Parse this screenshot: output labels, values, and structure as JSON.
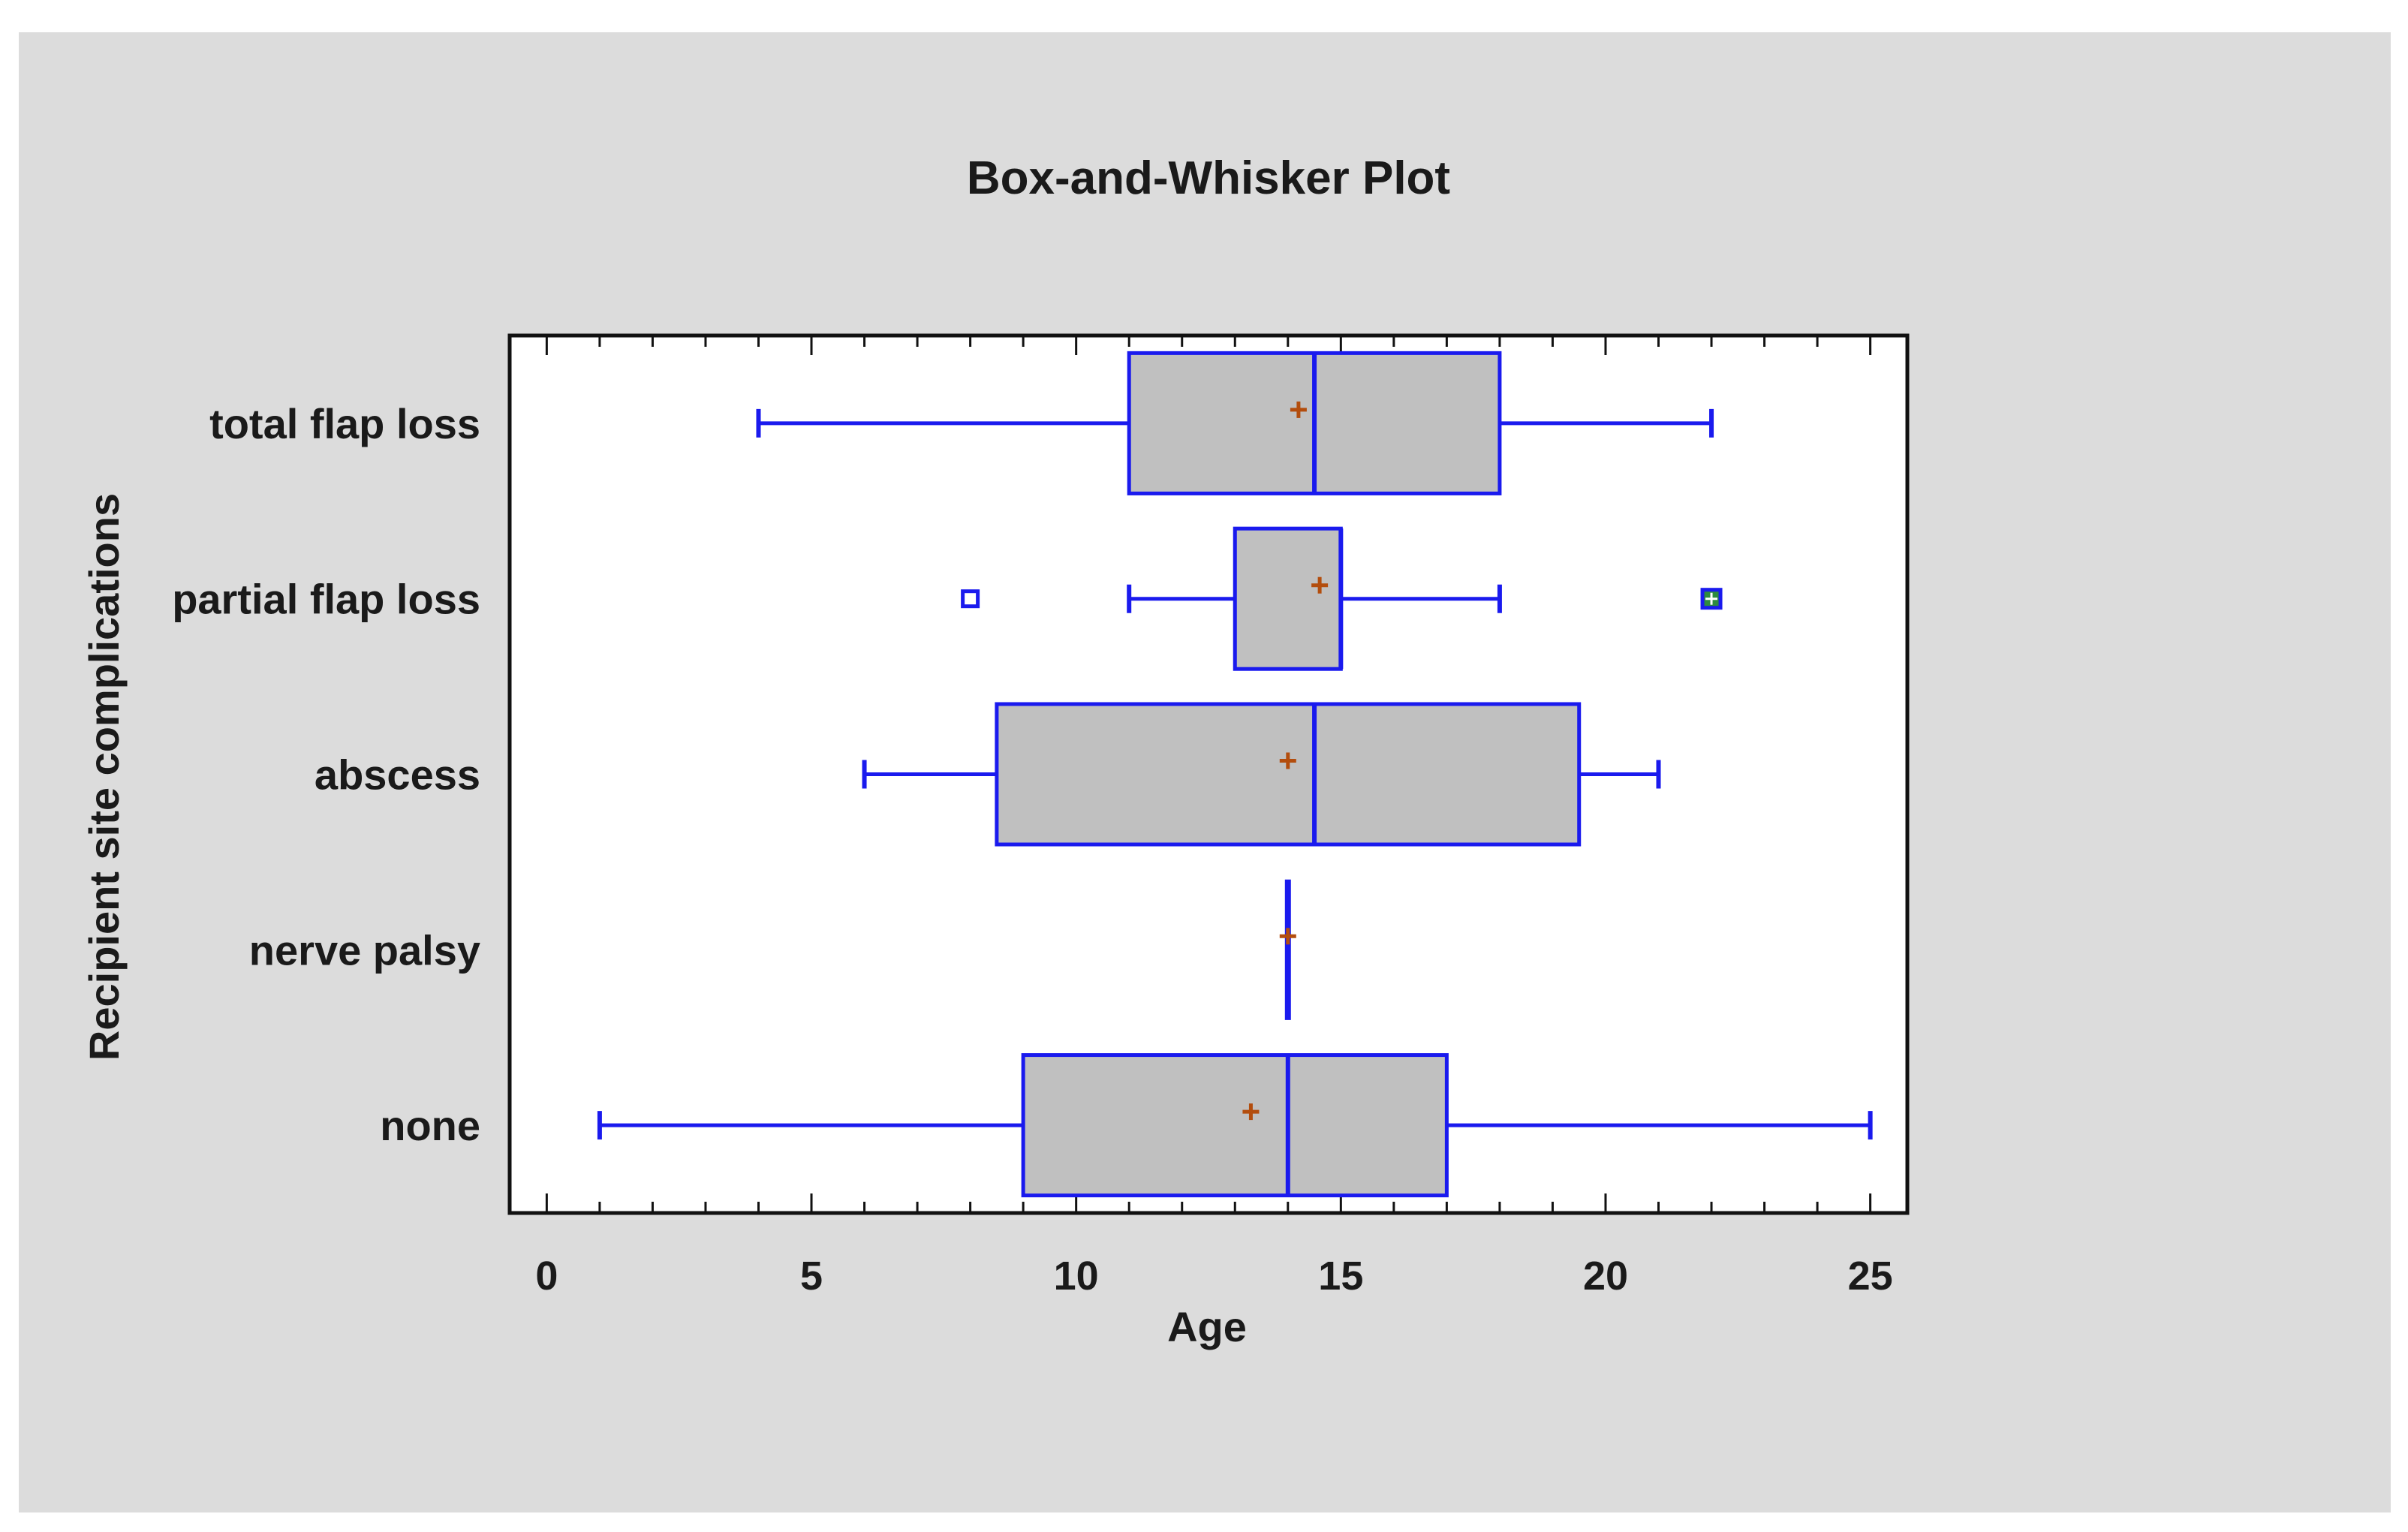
{
  "chart_data": {
    "type": "box",
    "orientation": "horizontal",
    "title": "Box-and-Whisker Plot",
    "xlabel": "Age",
    "ylabel": "Recipient site complications",
    "xlim": [
      -0.7,
      25.7
    ],
    "xticks": [
      0,
      5,
      10,
      15,
      20,
      25
    ],
    "xtick_labels": [
      "0",
      "5",
      "10",
      "15",
      "20",
      "25"
    ],
    "categories": [
      "total flap loss",
      "partial flap loss",
      "abscess",
      "nerve palsy",
      "none"
    ],
    "boxes": [
      {
        "category": "total flap loss",
        "whisker_low": 4,
        "q1": 11,
        "median": 14.5,
        "q3": 18,
        "whisker_high": 22,
        "mean": 14.2,
        "outliers": [],
        "far_outliers": []
      },
      {
        "category": "partial flap loss",
        "whisker_low": 11,
        "q1": 13,
        "median": 15,
        "q3": 15,
        "whisker_high": 18,
        "mean": 14.6,
        "outliers": [
          8
        ],
        "far_outliers": [
          22
        ]
      },
      {
        "category": "abscess",
        "whisker_low": 6,
        "q1": 8.5,
        "median": 14.5,
        "q3": 19.5,
        "whisker_high": 21,
        "mean": 14,
        "outliers": [],
        "far_outliers": []
      },
      {
        "category": "nerve palsy",
        "whisker_low": 14,
        "q1": 14,
        "median": 14,
        "q3": 14,
        "whisker_high": 14,
        "mean": 14,
        "outliers": [],
        "far_outliers": []
      },
      {
        "category": "none",
        "whisker_low": 1,
        "q1": 9,
        "median": 14,
        "q3": 17,
        "whisker_high": 25,
        "mean": 13.3,
        "outliers": [],
        "far_outliers": []
      }
    ],
    "grid": false,
    "legend": "none"
  },
  "colors": {
    "frame_background": "#dcdcdc",
    "plot_background": "#ffffff",
    "box_fill": "#c0c0c0",
    "box_stroke": "#1a1aee",
    "mean_marker": "#b34d0d",
    "far_outlier_fill": "#2e8b3e",
    "text": "#1a1a1a",
    "axis": "#111111"
  }
}
